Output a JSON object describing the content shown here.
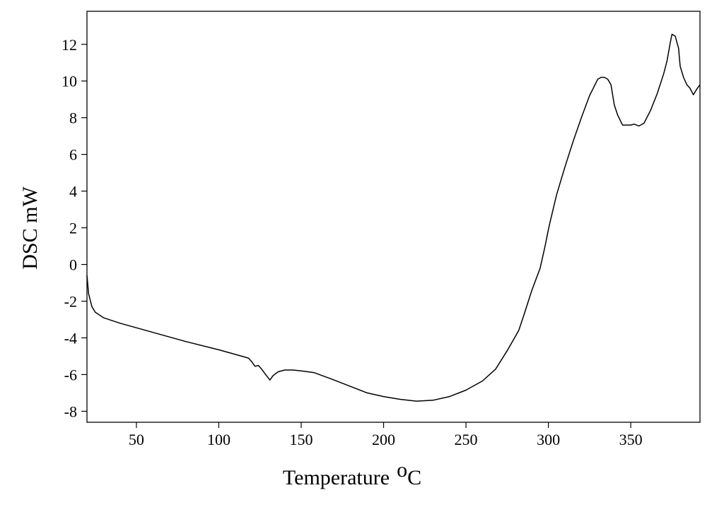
{
  "chart_data": {
    "type": "line",
    "title": "",
    "xlabel": "Temperature",
    "xlabel_sup": "o",
    "xlabel_unit": "C",
    "ylabel": "DSC mW",
    "xlim": [
      20,
      392
    ],
    "ylim": [
      -8.6,
      13.8
    ],
    "grid": false,
    "legend": "none",
    "x_ticks": [
      50,
      100,
      150,
      200,
      250,
      300,
      350
    ],
    "x_tick_labels": [
      "50",
      "100",
      "150",
      "200",
      "250",
      "300",
      "350"
    ],
    "y_ticks": [
      12,
      10,
      8,
      6,
      4,
      2,
      0,
      -2,
      -4,
      -6,
      -8
    ],
    "y_tick_labels": [
      "12",
      "10",
      "8",
      "6",
      "4",
      "2",
      "0",
      "-2",
      "-4",
      "-6",
      "-8"
    ],
    "series": [
      {
        "color": "#000000",
        "x": [
          20,
          21,
          23,
          25,
          30,
          40,
          50,
          60,
          80,
          100,
          110,
          118,
          120,
          122,
          124,
          126,
          128,
          131,
          133,
          136,
          140,
          145,
          150,
          158,
          170,
          180,
          190,
          200,
          210,
          220,
          230,
          240,
          250,
          260,
          268,
          275,
          282,
          285,
          290,
          295,
          298,
          300,
          301,
          305,
          310,
          315,
          320,
          325,
          330,
          332,
          334,
          336,
          338,
          340,
          342,
          345,
          350,
          352,
          355,
          358,
          362,
          366,
          370,
          372,
          374,
          375,
          377,
          378,
          379,
          380,
          382,
          384,
          386,
          388,
          390,
          392
        ],
        "y": [
          -0.6,
          -1.6,
          -2.3,
          -2.6,
          -2.9,
          -3.2,
          -3.45,
          -3.7,
          -4.2,
          -4.65,
          -4.9,
          -5.1,
          -5.3,
          -5.55,
          -5.5,
          -5.7,
          -5.95,
          -6.3,
          -6.05,
          -5.85,
          -5.75,
          -5.75,
          -5.8,
          -5.9,
          -6.3,
          -6.65,
          -7.0,
          -7.2,
          -7.35,
          -7.45,
          -7.4,
          -7.2,
          -6.85,
          -6.35,
          -5.7,
          -4.7,
          -3.6,
          -2.8,
          -1.4,
          -0.2,
          1.0,
          1.9,
          2.3,
          3.8,
          5.3,
          6.7,
          8.0,
          9.2,
          10.1,
          10.2,
          10.2,
          10.1,
          9.8,
          8.7,
          8.15,
          7.6,
          7.6,
          7.65,
          7.55,
          7.7,
          8.4,
          9.3,
          10.4,
          11.1,
          12.1,
          12.55,
          12.45,
          12.1,
          11.8,
          10.8,
          10.2,
          9.8,
          9.6,
          9.25,
          9.55,
          9.8
        ]
      }
    ]
  }
}
